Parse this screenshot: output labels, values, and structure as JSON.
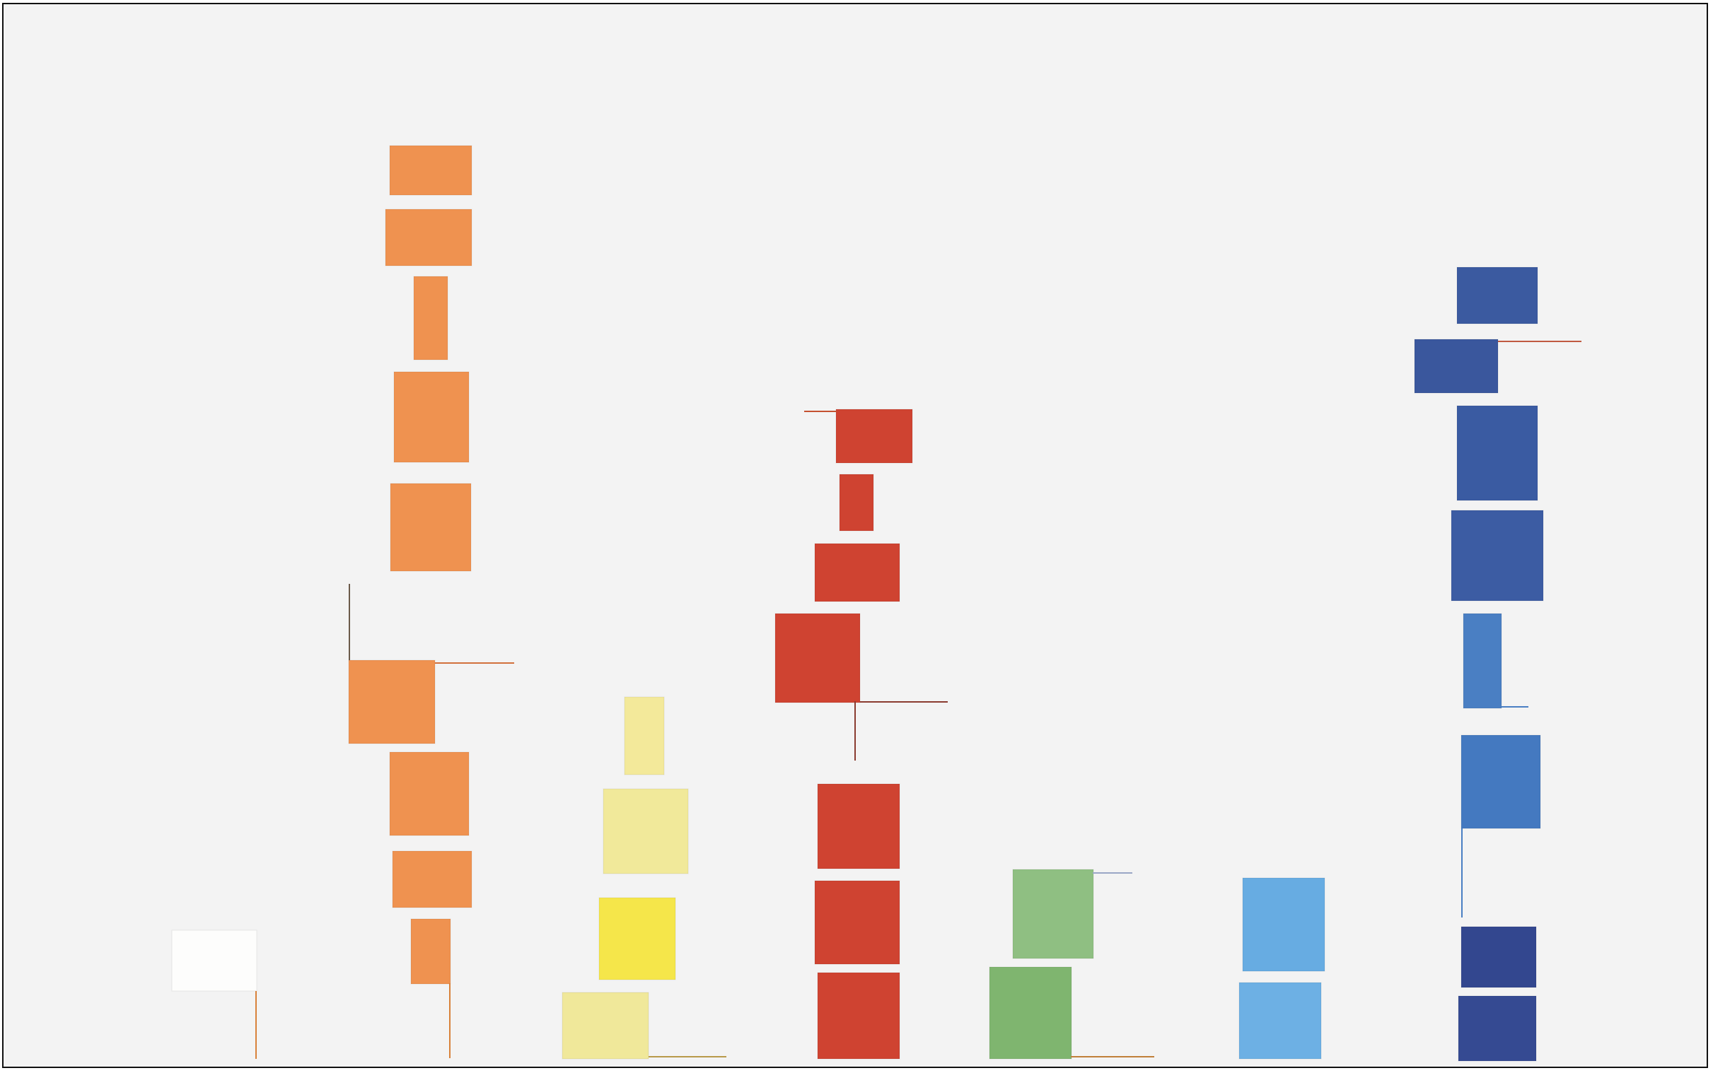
{
  "artwork": {
    "background": "#f3f3f3",
    "border": "#111111",
    "columns": [
      {
        "name": "white",
        "color": "#fdfdfc",
        "count": 1
      },
      {
        "name": "orange",
        "color": "#ef9250",
        "count": 8
      },
      {
        "name": "yellow",
        "color": "#f5ea8a",
        "count": 4
      },
      {
        "name": "red",
        "color": "#cf4331",
        "count": 7
      },
      {
        "name": "green",
        "color": "#8fbf7f",
        "count": 2
      },
      {
        "name": "light-blue",
        "color": "#66ade3",
        "count": 2
      },
      {
        "name": "blue",
        "color": "#3f5fa8",
        "count": 8
      }
    ]
  }
}
